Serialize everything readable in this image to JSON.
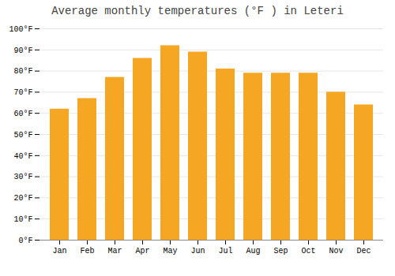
{
  "chart_data": {
    "type": "bar",
    "title": "Average monthly temperatures (°F ) in Leteri",
    "categories": [
      "Jan",
      "Feb",
      "Mar",
      "Apr",
      "May",
      "Jun",
      "Jul",
      "Aug",
      "Sep",
      "Oct",
      "Nov",
      "Dec"
    ],
    "values": [
      62,
      67,
      77,
      86,
      92,
      89,
      81,
      79,
      79,
      79,
      70,
      64
    ],
    "color": "#F5A623",
    "ylim": [
      0,
      100
    ],
    "yticks": [
      {
        "value": 0,
        "label": "0°F"
      },
      {
        "value": 10,
        "label": "10°F"
      },
      {
        "value": 20,
        "label": "20°F"
      },
      {
        "value": 30,
        "label": "30°F"
      },
      {
        "value": 40,
        "label": "40°F"
      },
      {
        "value": 50,
        "label": "50°F"
      },
      {
        "value": 60,
        "label": "60°F"
      },
      {
        "value": 70,
        "label": "70°F"
      },
      {
        "value": 80,
        "label": "80°F"
      },
      {
        "value": 90,
        "label": "90°F"
      },
      {
        "value": 100,
        "label": "100°F"
      }
    ],
    "grid": true
  }
}
